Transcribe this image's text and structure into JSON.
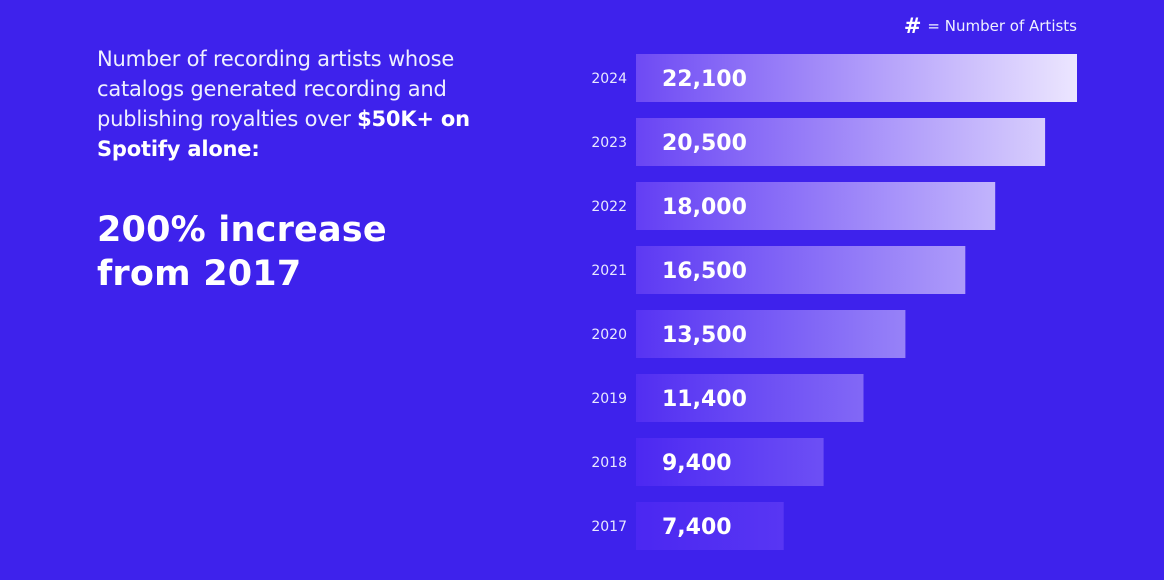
{
  "intro": {
    "text_part1": "Number of recording artists whose catalogs generated recording and publishing royalties over ",
    "text_bold": "$50K+ on Spotify alone:"
  },
  "headline": {
    "line1": "200% increase",
    "line2": "from 2017"
  },
  "legend": {
    "symbol": "#",
    "text": "= Number of Artists"
  },
  "colors": {
    "background": "#3e22ec",
    "bar_top": "#ece6ff",
    "bar_bottom": "#4b27f2"
  },
  "chart_data": {
    "type": "bar",
    "orientation": "horizontal",
    "categories": [
      "2024",
      "2023",
      "2022",
      "2021",
      "2020",
      "2019",
      "2018",
      "2017"
    ],
    "values": [
      22100,
      20500,
      18000,
      16500,
      13500,
      11400,
      9400,
      7400
    ],
    "value_labels": [
      "22,100",
      "20,500",
      "18,000",
      "16,500",
      "13,500",
      "11,400",
      "9,400",
      "7,400"
    ],
    "xlim": [
      0,
      22100
    ],
    "grid": false
  }
}
